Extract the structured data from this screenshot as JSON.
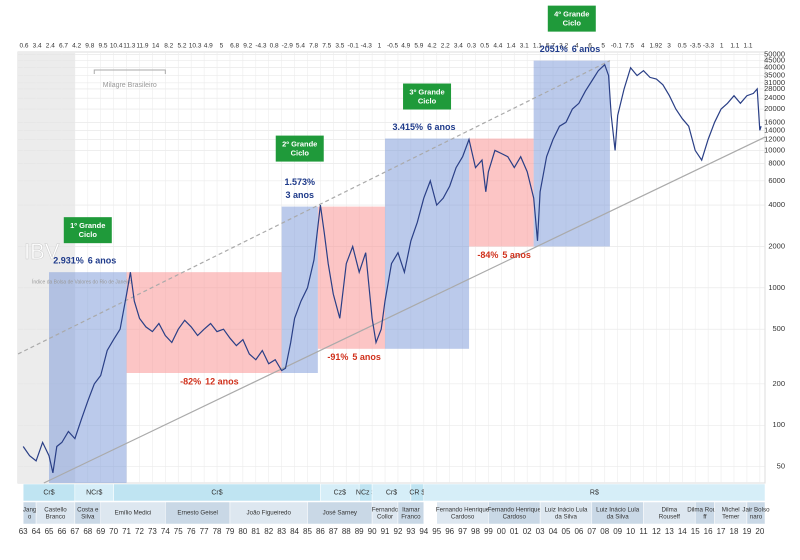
{
  "chart_data": {
    "type": "line",
    "logscale": true,
    "series": [
      {
        "name": "IBV",
        "color": "#2a3f86",
        "x": [
          1963,
          1963.5,
          1964,
          1964.5,
          1965,
          1965.3,
          1965.6,
          1966,
          1966.5,
          1967,
          1967.5,
          1968,
          1968.5,
          1969,
          1969.5,
          1970,
          1970.5,
          1971,
          1971.3,
          1971.6,
          1972,
          1972.5,
          1973,
          1973.5,
          1974,
          1974.5,
          1975,
          1975.5,
          1976,
          1976.5,
          1977,
          1977.5,
          1978,
          1978.5,
          1979,
          1979.5,
          1980,
          1980.5,
          1981,
          1981.5,
          1982,
          1982.5,
          1983,
          1983.3,
          1983.7,
          1984,
          1984.5,
          1985,
          1985.5,
          1986,
          1986.3,
          1986.6,
          1987,
          1987.5,
          1988,
          1988.5,
          1989,
          1989.5,
          1990,
          1990.3,
          1990.7,
          1991,
          1991.5,
          1992,
          1992.5,
          1993,
          1993.5,
          1994,
          1994.5,
          1995,
          1995.5,
          1996,
          1996.5,
          1997,
          1997.5,
          1998,
          1998.5,
          1998.8,
          1999,
          1999.5,
          2000,
          2000.5,
          2001,
          2001.5,
          2002,
          2002.5,
          2002.8,
          2003,
          2003.5,
          2004,
          2004.5,
          2005,
          2005.5,
          2006,
          2006.5,
          2007,
          2007.5,
          2008,
          2008.3,
          2008.5,
          2008.8,
          2009,
          2009.5,
          2010,
          2010.5,
          2011,
          2011.5,
          2012,
          2012.5,
          2013,
          2013.5,
          2014,
          2014.5,
          2015,
          2015.5,
          2016,
          2016.5,
          2017,
          2017.5,
          2018,
          2018.5,
          2019,
          2019.5,
          2019.8,
          2020,
          2020.1
        ],
        "values": [
          70,
          60,
          55,
          75,
          60,
          45,
          70,
          75,
          90,
          80,
          110,
          150,
          200,
          230,
          350,
          420,
          500,
          900,
          1300,
          800,
          600,
          520,
          480,
          550,
          450,
          400,
          500,
          580,
          520,
          450,
          500,
          550,
          480,
          500,
          430,
          380,
          420,
          330,
          300,
          350,
          280,
          300,
          250,
          260,
          400,
          600,
          800,
          1000,
          1600,
          4000,
          2500,
          1500,
          900,
          600,
          1500,
          2000,
          1300,
          1800,
          600,
          400,
          500,
          800,
          1500,
          1800,
          1300,
          2200,
          3000,
          4500,
          6000,
          4000,
          4500,
          5500,
          7500,
          9000,
          12000,
          7500,
          8500,
          5000,
          7000,
          10000,
          9500,
          9000,
          7500,
          9000,
          7000,
          4500,
          2200,
          5000,
          9000,
          12000,
          15000,
          16000,
          20000,
          22000,
          27000,
          32000,
          38000,
          42000,
          35000,
          18000,
          10000,
          18000,
          28000,
          40000,
          35000,
          38000,
          34000,
          33000,
          30000,
          25000,
          20000,
          17000,
          15000,
          10000,
          8500,
          12000,
          16000,
          20000,
          22000,
          25000,
          22000,
          25000,
          26000,
          28000,
          14000,
          15000
        ]
      }
    ],
    "ylim": [
      38,
      52000
    ],
    "yticks": [
      50,
      100,
      200,
      500,
      1000,
      2000,
      4000,
      6000,
      8000,
      10000,
      12000,
      14000,
      16000,
      20000,
      24000,
      28000,
      31000,
      35000,
      40000,
      45000,
      50000
    ],
    "xlim": [
      1962.6,
      2020.4
    ],
    "xticks": [
      {
        "value": 1963,
        "label": "63"
      },
      {
        "value": 1964,
        "label": "64"
      },
      {
        "value": 1965,
        "label": "65"
      },
      {
        "value": 1966,
        "label": "66"
      },
      {
        "value": 1967,
        "label": "67"
      },
      {
        "value": 1968,
        "label": "68"
      },
      {
        "value": 1969,
        "label": "69"
      },
      {
        "value": 1970,
        "label": "70"
      },
      {
        "value": 1971,
        "label": "71"
      },
      {
        "value": 1972,
        "label": "72"
      },
      {
        "value": 1973,
        "label": "73"
      },
      {
        "value": 1974,
        "label": "74"
      },
      {
        "value": 1975,
        "label": "75"
      },
      {
        "value": 1976,
        "label": "76"
      },
      {
        "value": 1977,
        "label": "77"
      },
      {
        "value": 1978,
        "label": "78"
      },
      {
        "value": 1979,
        "label": "79"
      },
      {
        "value": 1980,
        "label": "80"
      },
      {
        "value": 1981,
        "label": "81"
      },
      {
        "value": 1982,
        "label": "82"
      },
      {
        "value": 1983,
        "label": "83"
      },
      {
        "value": 1984,
        "label": "84"
      },
      {
        "value": 1985,
        "label": "85"
      },
      {
        "value": 1986,
        "label": "86"
      },
      {
        "value": 1987,
        "label": "87"
      },
      {
        "value": 1988,
        "label": "88"
      },
      {
        "value": 1989,
        "label": "89"
      },
      {
        "value": 1990,
        "label": "90"
      },
      {
        "value": 1991,
        "label": "91"
      },
      {
        "value": 1992,
        "label": "92"
      },
      {
        "value": 1993,
        "label": "93"
      },
      {
        "value": 1994,
        "label": "94"
      },
      {
        "value": 1995,
        "label": "95"
      },
      {
        "value": 1996,
        "label": "96"
      },
      {
        "value": 1997,
        "label": "97"
      },
      {
        "value": 1998,
        "label": "98"
      },
      {
        "value": 1999,
        "label": "99"
      },
      {
        "value": 2000,
        "label": "00"
      },
      {
        "value": 2001,
        "label": "01"
      },
      {
        "value": 2002,
        "label": "02"
      },
      {
        "value": 2003,
        "label": "03"
      },
      {
        "value": 2004,
        "label": "04"
      },
      {
        "value": 2005,
        "label": "05"
      },
      {
        "value": 2006,
        "label": "06"
      },
      {
        "value": 2007,
        "label": "07"
      },
      {
        "value": 2008,
        "label": "08"
      },
      {
        "value": 2009,
        "label": "09"
      },
      {
        "value": 2010,
        "label": "10"
      },
      {
        "value": 2011,
        "label": "11"
      },
      {
        "value": 2012,
        "label": "12"
      },
      {
        "value": 2013,
        "label": "13"
      },
      {
        "value": 2014,
        "label": "14"
      },
      {
        "value": 2015,
        "label": "15"
      },
      {
        "value": 2016,
        "label": "16"
      },
      {
        "value": 2017,
        "label": "17"
      },
      {
        "value": 2018,
        "label": "18"
      },
      {
        "value": 2019,
        "label": "19"
      },
      {
        "value": 2020,
        "label": "20"
      }
    ],
    "gdp_growth": [
      0.6,
      3.4,
      2.4,
      6.7,
      4.2,
      9.8,
      9.5,
      10.4,
      11.3,
      11.9,
      14,
      8.2,
      5.2,
      10.3,
      4.9,
      5,
      6.8,
      9.2,
      -4.3,
      0.8,
      -2.9,
      5.4,
      7.8,
      7.5,
      3.5,
      -0.1,
      -4.3,
      1,
      -0.5,
      4.9,
      5.9,
      4.2,
      2.2,
      3.4,
      0.3,
      0.5,
      4.4,
      1.4,
      3.1,
      1.1,
      5.7,
      3.2,
      4,
      6,
      5,
      -0.1,
      7.5,
      4,
      1.92,
      3,
      0.5,
      -3.5,
      -3.3,
      1,
      1.1,
      1.1
    ],
    "index_name": "IBV",
    "index_description": "Índice da Bolsa de Valores do Rio de Janeiro",
    "milagre": {
      "label": "Milagre Brasileiro",
      "start": 1968.5,
      "end": 1974
    },
    "cycles": [
      {
        "label": "1º Grande Ciclo",
        "gain": "2.931%",
        "duration": "6 anos",
        "start": 1965,
        "end": 1971,
        "low": 38,
        "high": 1300
      },
      {
        "label": "2º Grande Ciclo",
        "gain": "1.573%",
        "duration": "3 anos",
        "start": 1983,
        "end": 1985.8,
        "low": 240,
        "high": 3900
      },
      {
        "label": "3º Grande Ciclo",
        "gain": "3.415%",
        "duration": "6 anos",
        "start": 1991,
        "end": 1997.5,
        "low": 360,
        "high": 12200
      },
      {
        "label": "4º Grande Ciclo",
        "gain": "2051%",
        "duration": "6 anos",
        "start": 2002.5,
        "end": 2008.4,
        "low": 2000,
        "high": 45000
      }
    ],
    "declines": [
      {
        "change": "-82%",
        "duration": "12 anos",
        "start": 1971,
        "end": 1983,
        "low": 240,
        "high": 1300
      },
      {
        "change": "-91%",
        "duration": "5 anos",
        "start": 1985.8,
        "end": 1991,
        "low": 360,
        "high": 3900
      },
      {
        "change": "-84%",
        "duration": "5 anos",
        "start": 1997.5,
        "end": 2002.5,
        "low": 2000,
        "high": 12200
      }
    ],
    "trend_lines": [
      {
        "style": "solid",
        "points": [
          [
            1964.6,
            38
          ],
          [
            2020.4,
            12500
          ]
        ]
      },
      {
        "style": "dashed",
        "points": [
          [
            1962.6,
            330
          ],
          [
            2008.4,
            45000
          ]
        ]
      }
    ],
    "currencies": [
      {
        "label": "Cr$",
        "start": 1963,
        "end": 1967
      },
      {
        "label": "NCr$",
        "start": 1967,
        "end": 1970
      },
      {
        "label": "Cr$",
        "start": 1970,
        "end": 1986
      },
      {
        "label": "Cz$",
        "start": 1986,
        "end": 1989
      },
      {
        "label": "NCz $",
        "start": 1989,
        "end": 1990
      },
      {
        "label": "Cr$",
        "start": 1990,
        "end": 1993
      },
      {
        "label": "CR $",
        "start": 1993,
        "end": 1994
      },
      {
        "label": "R$",
        "start": 1994,
        "end": 2020.4
      }
    ],
    "presidents": [
      {
        "label": "Jang o",
        "start": 1963,
        "end": 1964
      },
      {
        "label": "Castello Branco",
        "start": 1964,
        "end": 1967
      },
      {
        "label": "Costa e Silva",
        "start": 1967,
        "end": 1969
      },
      {
        "label": "Emílio Medici",
        "start": 1969,
        "end": 1974
      },
      {
        "label": "Ernesto Geisel",
        "start": 1974,
        "end": 1979
      },
      {
        "label": "João Figueiredo",
        "start": 1979,
        "end": 1985
      },
      {
        "label": "José Sarney",
        "start": 1985,
        "end": 1990
      },
      {
        "label": "Fernando Collor",
        "start": 1990,
        "end": 1992
      },
      {
        "label": "Itamar Franco",
        "start": 1992,
        "end": 1994
      },
      {
        "label": "Fernando Henrique Cardoso",
        "start": 1995,
        "end": 1999
      },
      {
        "label": "Fernando Henrique Cardoso",
        "start": 1999,
        "end": 2003
      },
      {
        "label": "Luiz Inácio Lula da Silva",
        "start": 2003,
        "end": 2007
      },
      {
        "label": "Luiz Inácio Lula da Silva",
        "start": 2007,
        "end": 2011
      },
      {
        "label": "Dilma Rouseff",
        "start": 2011,
        "end": 2015
      },
      {
        "label": "Dilma Rouse ff",
        "start": 2015,
        "end": 2016.5
      },
      {
        "label": "Michel Temer",
        "start": 2016.5,
        "end": 2019
      },
      {
        "label": "Jair Bolso naro",
        "start": 2019,
        "end": 2020.4
      }
    ]
  }
}
